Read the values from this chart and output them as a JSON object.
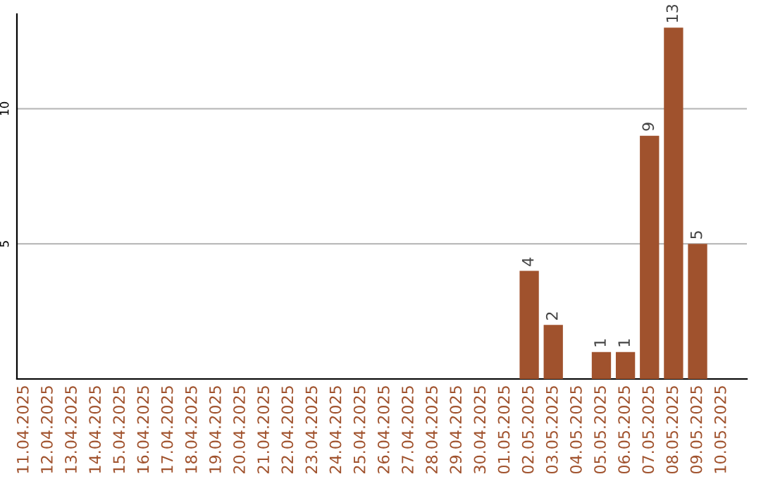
{
  "chart_data": {
    "type": "bar",
    "categories": [
      "11.04.2025",
      "12.04.2025",
      "13.04.2025",
      "14.04.2025",
      "15.04.2025",
      "16.04.2025",
      "17.04.2025",
      "18.04.2025",
      "19.04.2025",
      "20.04.2025",
      "21.04.2025",
      "22.04.2025",
      "23.04.2025",
      "24.04.2025",
      "25.04.2025",
      "26.04.2025",
      "27.04.2025",
      "28.04.2025",
      "29.04.2025",
      "30.04.2025",
      "01.05.2025",
      "02.05.2025",
      "03.05.2025",
      "04.05.2025",
      "05.05.2025",
      "06.05.2025",
      "07.05.2025",
      "08.05.2025",
      "09.05.2025",
      "10.05.2025"
    ],
    "values": [
      0,
      0,
      0,
      0,
      0,
      0,
      0,
      0,
      0,
      0,
      0,
      0,
      0,
      0,
      0,
      0,
      0,
      0,
      0,
      0,
      0,
      4,
      2,
      0,
      1,
      1,
      9,
      13,
      5,
      0
    ],
    "value_labels": [
      null,
      null,
      null,
      null,
      null,
      null,
      null,
      null,
      null,
      null,
      null,
      null,
      null,
      null,
      null,
      null,
      null,
      null,
      null,
      null,
      null,
      "4",
      "2",
      null,
      "1",
      "1",
      "9",
      "13",
      "5",
      null
    ],
    "color": "#a0522d",
    "ylim": [
      0,
      13.5
    ],
    "yticks": [
      5,
      10
    ],
    "grid": "y",
    "legend": false
  }
}
